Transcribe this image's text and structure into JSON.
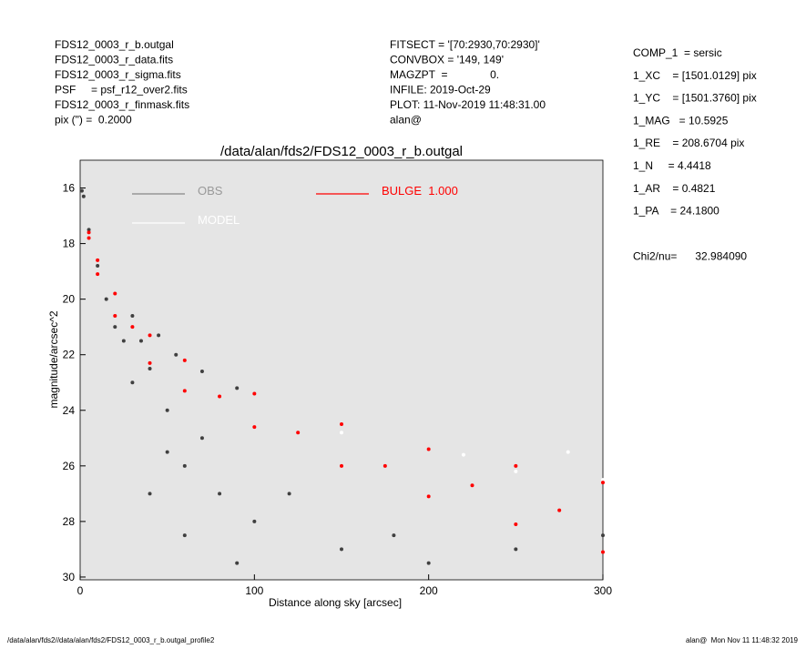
{
  "header": {
    "left": [
      "FDS12_0003_r_b.outgal",
      "FDS12_0003_r_data.fits",
      "FDS12_0003_r_sigma.fits",
      "PSF     = psf_r12_over2.fits",
      "FDS12_0003_r_finmask.fits",
      "pix (\") =  0.2000"
    ],
    "middle": [
      "FITSECT = '[70:2930,70:2930]'",
      "CONVBOX = '149, 149'",
      "MAGZPT  =              0.",
      "INFILE: 2019-Oct-29",
      "PLOT: 11-Nov-2019 11:48:31.00",
      "alan@"
    ],
    "right": [
      "COMP_1  = sersic",
      "1_XC    = [1501.0129] pix",
      "1_YC    = [1501.3760] pix",
      "1_MAG   = 10.5925",
      "1_RE    = 208.6704 pix",
      "1_N     = 4.4418",
      "1_AR    = 0.4821",
      "1_PA    = 24.1800",
      "Chi2/nu=      32.984090"
    ]
  },
  "footer": {
    "left": "/data/alan/fds2//data/alan/fds2/FDS12_0003_r_b.outgal_profile2",
    "right": "alan@  Mon Nov 11 11:48:32 2019"
  },
  "chart_data": {
    "type": "scatter",
    "title": "/data/alan/fds2/FDS12_0003_r_b.outgal",
    "x_label": "Distance along sky [arcsec]",
    "y_label": "magnitude/arcsec^2",
    "xlim": [
      0,
      300
    ],
    "ylim": [
      30.1,
      15
    ],
    "xticks": [
      0,
      100,
      200,
      300
    ],
    "yticks": [
      16,
      18,
      20,
      22,
      24,
      26,
      28,
      30
    ],
    "background": "#e5e5e5",
    "series": [
      {
        "name": "OBS",
        "color": "#404040",
        "x": [
          1,
          2,
          5,
          10,
          15,
          20,
          25,
          30,
          35,
          40,
          45,
          50,
          55,
          60,
          70,
          80,
          90,
          100,
          120,
          150,
          180,
          200,
          250,
          300,
          40,
          60,
          90,
          30,
          50,
          70
        ],
        "values": [
          16.1,
          16.3,
          17.5,
          18.8,
          20.0,
          21.0,
          21.5,
          20.6,
          21.5,
          22.5,
          21.3,
          24.0,
          22.0,
          26.0,
          25.0,
          27.0,
          23.2,
          28.0,
          27.0,
          29.0,
          28.5,
          29.5,
          29.0,
          28.5,
          27.0,
          28.5,
          29.5,
          23.0,
          25.5,
          22.6
        ]
      },
      {
        "name": "MODEL",
        "color": "#ffffff",
        "x": [
          10,
          40,
          100,
          150,
          200,
          220,
          250,
          280,
          300,
          300
        ],
        "values": [
          19.1,
          22.3,
          24.6,
          24.8,
          27.1,
          25.6,
          26.2,
          25.5,
          26.5,
          29.1
        ]
      },
      {
        "name": "BULGE  1.000",
        "color": "#ff0000",
        "x": [
          5,
          10,
          20,
          40,
          60,
          100,
          150,
          200,
          250,
          300,
          5,
          10,
          20,
          40,
          60,
          100,
          150,
          200,
          250,
          300,
          30,
          80,
          125,
          175,
          225,
          275
        ],
        "values": [
          17.6,
          18.6,
          19.8,
          21.3,
          22.2,
          23.4,
          24.5,
          25.4,
          26.0,
          26.6,
          17.8,
          19.1,
          20.6,
          22.3,
          23.3,
          24.6,
          26.0,
          27.1,
          28.1,
          29.1,
          21.0,
          23.5,
          24.8,
          26.0,
          26.7,
          27.6
        ]
      }
    ]
  }
}
